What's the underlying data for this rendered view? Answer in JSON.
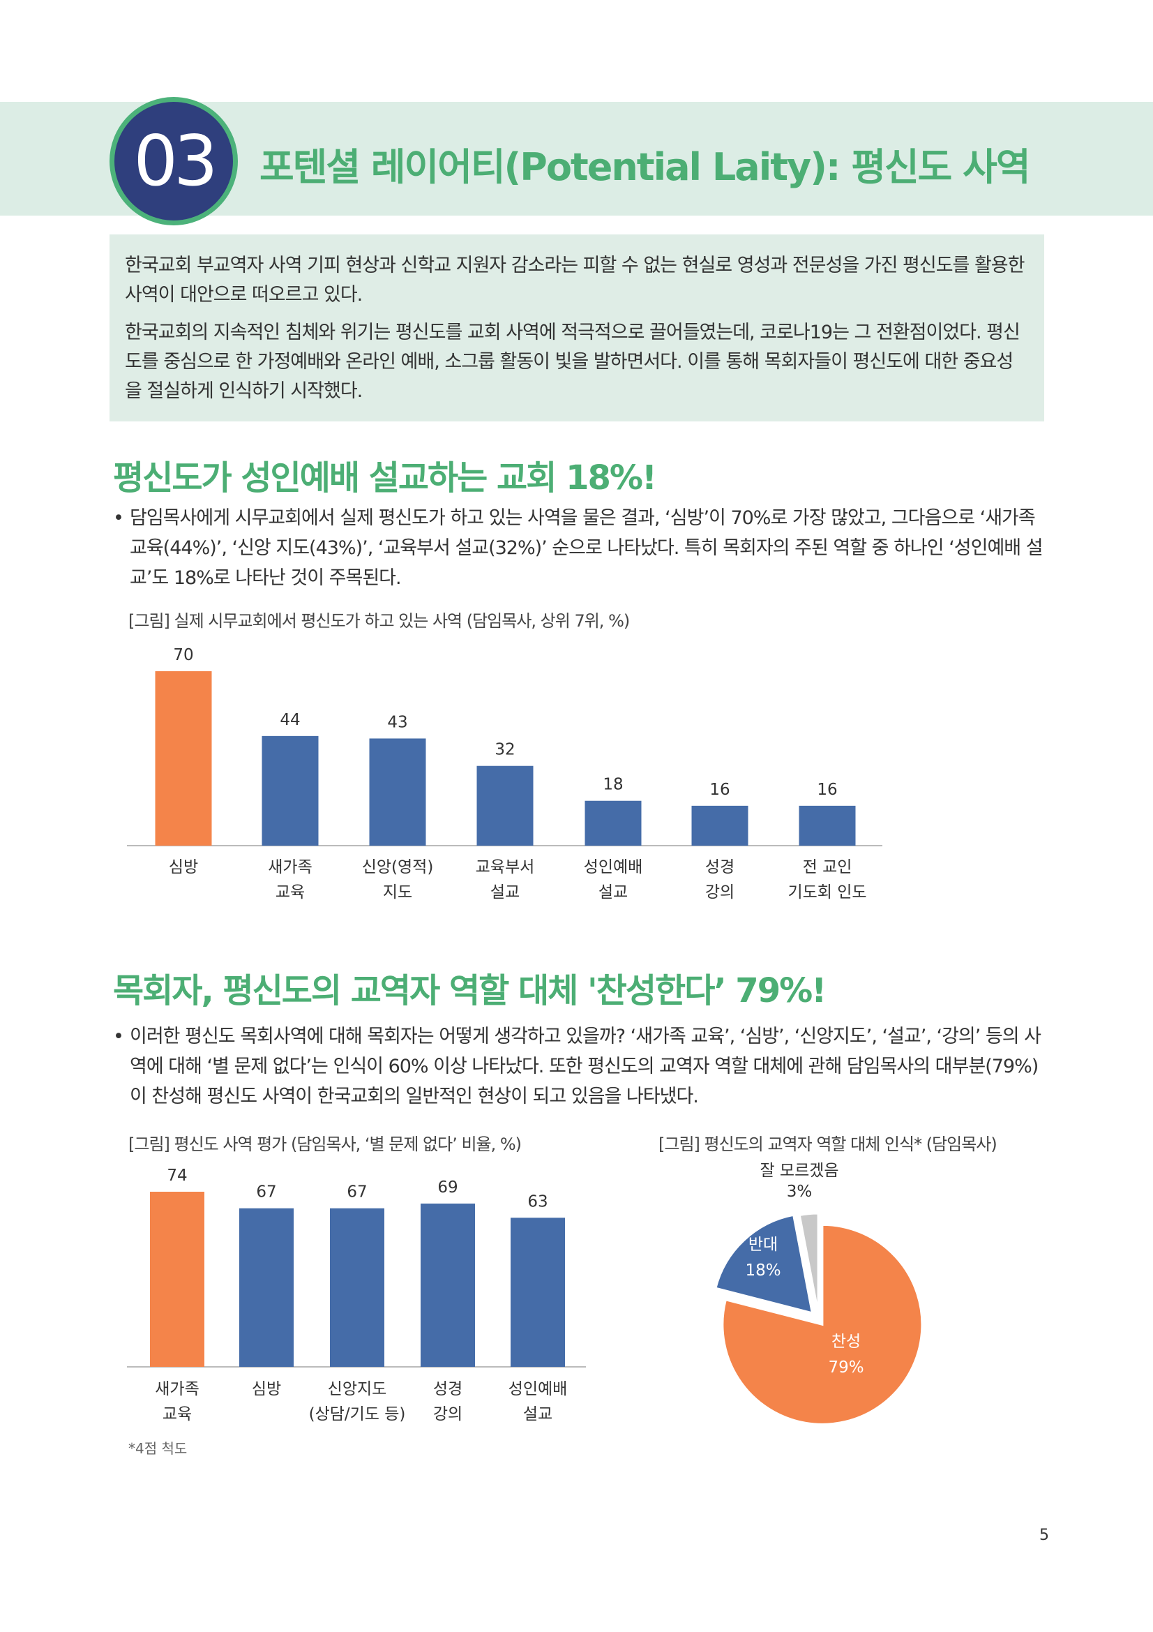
{
  "section": {
    "number": "03",
    "title": "포텐셜 레이어티(Potential Laity): 평신도 사역"
  },
  "intro": [
    "한국교회 부교역자 사역 기피 현상과 신학교 지원자 감소라는 피할 수 없는 현실로 영성과 전문성을 가진 평신도를 활용한 사역이 대안으로 떠오르고 있다.",
    "한국교회의 지속적인 침체와 위기는 평신도를 교회 사역에 적극적으로 끌어들였는데, 코로나19는 그 전환점이었다. 평신도를 중심으로 한 가정예배와 온라인 예배, 소그룹 활동이 빛을 발하면서다. 이를 통해 목회자들이 평신도에 대한 중요성을 절실하게 인식하기 시작했다."
  ],
  "heading1": "평신도가 성인예배 설교하는 교회 18%!",
  "bullet1": "담임목사에게 시무교회에서 실제 평신도가 하고 있는 사역을 물은 결과, ‘심방’이 70%로 가장 많았고, 그다음으로 ‘새가족 교육(44%)’, ‘신앙 지도(43%)’, ‘교육부서 설교(32%)’ 순으로 나타났다. 특히 목회자의 주된 역할 중 하나인 ‘성인예배 설교’도 18%로 나타난 것이 주목된다.",
  "heading2": "목회자, 평신도의 교역자 역할 대체 '찬성한다’ 79%!",
  "bullet2": "이러한 평신도 목회사역에 대해 목회자는 어떻게 생각하고 있을까? ‘새가족 교육’, ‘심방’, ‘신앙지도’, ‘설교’, ‘강의’ 등의 사역에 대해 ‘별 문제 없다’는 인식이 60% 이상 나타났다. 또한 평신도의 교역자 역할 대체에 관해 담임목사의 대부분(79%)이 찬성해 평신도 사역이 한국교회의 일반적인 현상이 되고 있음을 나타냈다.",
  "footnote": "*4점 척도",
  "page_number": "5",
  "colors": {
    "orange": "#f4844a",
    "blue": "#456ca8",
    "grey": "#c8c8c8"
  },
  "chart_data": [
    {
      "type": "bar",
      "title": "[그림] 실제 시무교회에서 평신도가 하고 있는 사역 (담임목사, 상위 7위, %)",
      "categories": [
        [
          "심방"
        ],
        [
          "새가족",
          "교육"
        ],
        [
          "신앙(영적)",
          "지도"
        ],
        [
          "교육부서",
          "설교"
        ],
        [
          "성인예배",
          "설교"
        ],
        [
          "성경",
          "강의"
        ],
        [
          "전 교인",
          "기도회 인도"
        ]
      ],
      "values": [
        70,
        44,
        43,
        32,
        18,
        16,
        16
      ],
      "highlight": [
        0
      ],
      "ylim": [
        0,
        70
      ]
    },
    {
      "type": "bar",
      "title": "[그림] 평신도 사역 평가 (담임목사, ‘별 문제 없다’ 비율,  %)",
      "categories": [
        [
          "새가족",
          "교육"
        ],
        [
          "심방"
        ],
        [
          "신앙지도",
          "(상담/기도 등)"
        ],
        [
          "성경",
          "강의"
        ],
        [
          "성인예배",
          "설교"
        ]
      ],
      "values": [
        74,
        67,
        67,
        69,
        63
      ],
      "highlight": [
        0
      ],
      "ylim": [
        0,
        74
      ]
    },
    {
      "type": "pie",
      "title": "[그림] 평신도의 교역자 역할 대체 인식* (담임목사)",
      "slices": [
        {
          "label": "찬성",
          "value": 79
        },
        {
          "label": "반대",
          "value": 18
        },
        {
          "label": "잘 모르겠음",
          "value": 3
        }
      ]
    }
  ]
}
